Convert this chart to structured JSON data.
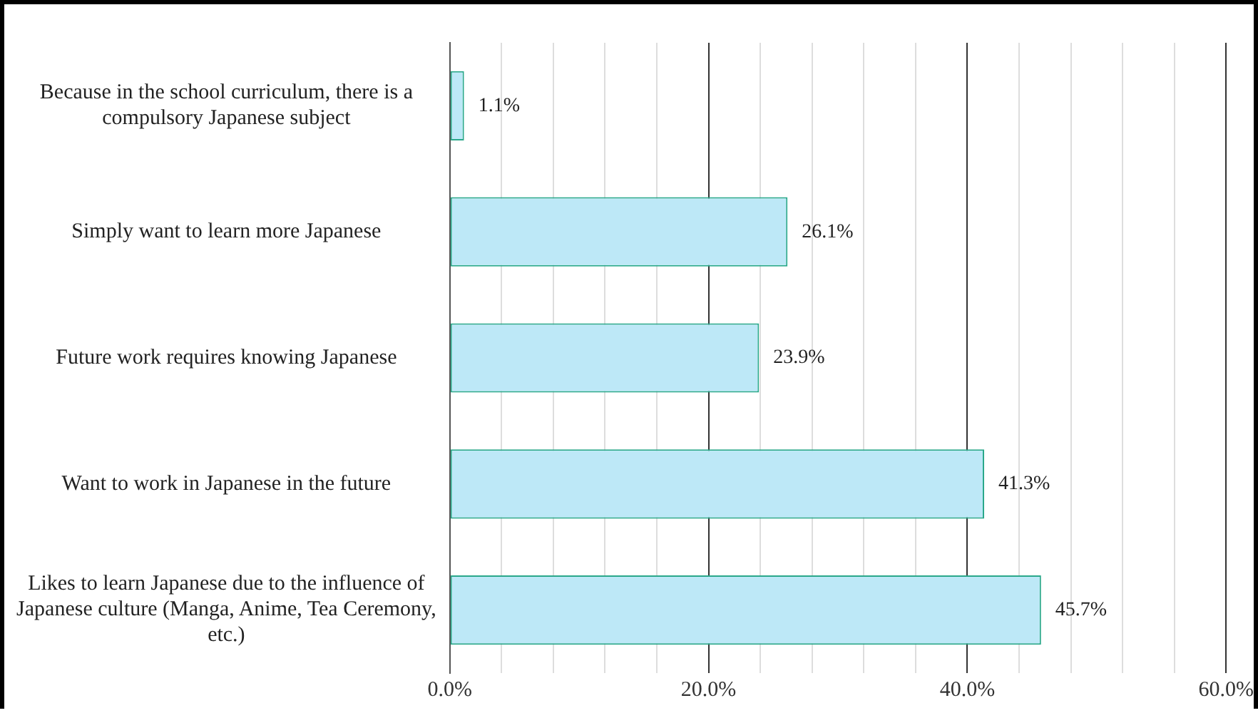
{
  "chart_data": {
    "type": "bar",
    "orientation": "horizontal",
    "categories": [
      "Because in the school curriculum, there is a compulsory Japanese subject",
      "Simply want to learn more Japanese",
      "Future work requires knowing Japanese",
      "Want to work in Japanese in the future",
      "Likes to learn Japanese due to the influence of Japanese culture (Manga, Anime, Tea Ceremony, etc.)"
    ],
    "values": [
      1.1,
      26.1,
      23.9,
      41.3,
      45.7
    ],
    "value_labels": [
      "1.1%",
      "26.1%",
      "23.9%",
      "41.3%",
      "45.7%"
    ],
    "color": "#bde8f7",
    "xlim": [
      0,
      60
    ],
    "xticks": [
      {
        "value": 0,
        "label": "0.0%"
      },
      {
        "value": 4,
        "label": null
      },
      {
        "value": 8,
        "label": null
      },
      {
        "value": 12,
        "label": null
      },
      {
        "value": 16,
        "label": null
      },
      {
        "value": 20,
        "label": "20.0%"
      },
      {
        "value": 24,
        "label": null
      },
      {
        "value": 28,
        "label": null
      },
      {
        "value": 32,
        "label": null
      },
      {
        "value": 36,
        "label": null
      },
      {
        "value": 40,
        "label": "40.0%"
      },
      {
        "value": 44,
        "label": null
      },
      {
        "value": 48,
        "label": null
      },
      {
        "value": 52,
        "label": null
      },
      {
        "value": 56,
        "label": null
      },
      {
        "value": 60,
        "label": "60.0%"
      }
    ],
    "grid": "x",
    "legend": false
  }
}
